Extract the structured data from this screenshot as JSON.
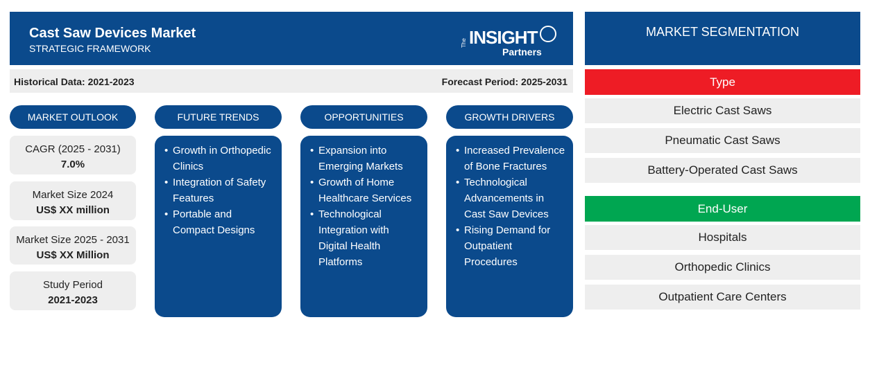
{
  "header": {
    "title": "Cast Saw Devices Market",
    "subtitle": "STRATEGIC FRAMEWORK",
    "logo": {
      "prefix": "The",
      "name": "INSIGHT",
      "suffix": "Partners"
    }
  },
  "period_bar": {
    "historical": "Historical Data: 2021-2023",
    "forecast": "Forecast Period: 2025-2031"
  },
  "market_outlook": {
    "title": "MARKET OUTLOOK",
    "items": [
      {
        "label": "CAGR (2025 - 2031)",
        "value": "7.0%"
      },
      {
        "label": "Market Size 2024",
        "value": "US$ XX million"
      },
      {
        "label": "Market Size 2025 - 2031",
        "value": "US$ XX Million"
      },
      {
        "label": "Study Period",
        "value": "2021-2023"
      }
    ]
  },
  "columns": [
    {
      "title": "FUTURE TRENDS",
      "items": [
        "Growth in Orthopedic Clinics",
        "Integration of Safety Features",
        "Portable and Compact Designs"
      ]
    },
    {
      "title": "OPPORTUNITIES",
      "items": [
        "Expansion into Emerging Markets",
        "Growth of Home Healthcare Services",
        "Technological Integration with Digital Health Platforms"
      ]
    },
    {
      "title": "GROWTH DRIVERS",
      "items": [
        "Increased Prevalence of Bone Fractures",
        "Technological Advancements in Cast Saw Devices",
        "Rising Demand for Outpatient Procedures"
      ]
    }
  ],
  "segmentation": {
    "title": "MARKET SEGMENTATION",
    "groups": [
      {
        "title": "Type",
        "items": [
          "Electric Cast Saws",
          "Pneumatic Cast Saws",
          "Battery-Operated Cast Saws"
        ]
      },
      {
        "title": "End-User",
        "items": [
          "Hospitals",
          "Orthopedic Clinics",
          "Outpatient Care Centers"
        ]
      }
    ]
  }
}
